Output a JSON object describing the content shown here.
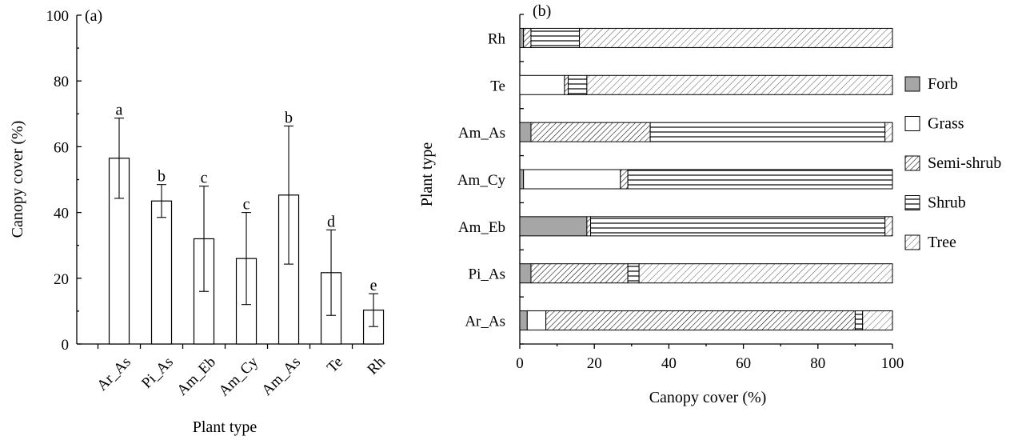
{
  "chart_data": [
    {
      "type": "bar",
      "panel_label": "(a)",
      "title": "",
      "xlabel": "Plant type",
      "ylabel": "Canopy cover (%)",
      "ylim": [
        0,
        100
      ],
      "yticks": [
        "0",
        "20",
        "40",
        "60",
        "80",
        "100"
      ],
      "categories": [
        "Ar_As",
        "Pi_As",
        "Am_Eb",
        "Am_Cy",
        "Am_As",
        "Te",
        "Rh"
      ],
      "values": [
        56.5,
        43.5,
        32,
        26,
        45.3,
        21.7,
        10.3
      ],
      "error": [
        12.2,
        5,
        16,
        14,
        21,
        13,
        5
      ],
      "significance": [
        "a",
        "b",
        "c",
        "c",
        "b",
        "d",
        "e"
      ],
      "grid": false
    },
    {
      "type": "bar",
      "orientation": "horizontal",
      "stacked": true,
      "panel_label": "(b)",
      "title": "",
      "xlabel": "Canopy cover (%)",
      "ylabel": "Plant type",
      "xlim": [
        0,
        100
      ],
      "xticks": [
        "0",
        "20",
        "40",
        "60",
        "80",
        "100"
      ],
      "categories": [
        "Rh",
        "Te",
        "Am_As",
        "Am_Cy",
        "Am_Eb",
        "Pi_As",
        "Ar_As"
      ],
      "series": [
        {
          "name": "Forb",
          "color": "#a6a6a6",
          "pattern": "solid-gray",
          "values": [
            1,
            0,
            3,
            1,
            18,
            3,
            2
          ]
        },
        {
          "name": "Grass",
          "color": "#ffffff",
          "pattern": "empty",
          "values": [
            0,
            12,
            0,
            26,
            0,
            0,
            5
          ]
        },
        {
          "name": "Semi-shrub",
          "color": "#000000",
          "pattern": "diagonal-dense",
          "values": [
            2,
            1,
            32,
            2,
            1,
            26,
            83
          ]
        },
        {
          "name": "Shrub",
          "color": "#000000",
          "pattern": "horizontal-lines",
          "values": [
            13,
            5,
            63,
            71,
            79,
            3,
            2
          ]
        },
        {
          "name": "Tree",
          "color": "#000000",
          "pattern": "diagonal-sparse",
          "values": [
            84,
            82,
            2,
            0,
            2,
            68,
            8
          ]
        }
      ],
      "legend_position": "right",
      "grid": false
    }
  ]
}
